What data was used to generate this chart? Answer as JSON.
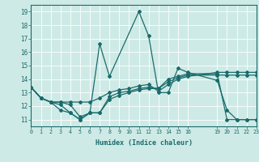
{
  "xlabel": "Humidex (Indice chaleur)",
  "xlim": [
    0,
    23
  ],
  "ylim": [
    10.5,
    19.5
  ],
  "yticks": [
    11,
    12,
    13,
    14,
    15,
    16,
    17,
    18,
    19
  ],
  "xticks": [
    0,
    1,
    2,
    3,
    4,
    5,
    6,
    7,
    8,
    9,
    10,
    11,
    12,
    13,
    14,
    15,
    16,
    19,
    20,
    21,
    22,
    23
  ],
  "bg_color": "#ceeae6",
  "line_color": "#1a6b6b",
  "grid_color": "#b0d8d4",
  "lines": [
    {
      "x": [
        0,
        1,
        2,
        3,
        4,
        5,
        6,
        7,
        8,
        11,
        12,
        13,
        14,
        15,
        16,
        19,
        20,
        21,
        22,
        23
      ],
      "y": [
        13.4,
        12.6,
        12.3,
        11.7,
        11.5,
        11.0,
        11.5,
        16.6,
        14.2,
        19.0,
        17.2,
        13.0,
        13.0,
        14.8,
        14.5,
        13.9,
        11.7,
        11.0,
        11.0,
        11.0
      ]
    },
    {
      "x": [
        0,
        1,
        2,
        3,
        4,
        5,
        6,
        7,
        8,
        9,
        10,
        11,
        12,
        13,
        14,
        15,
        16,
        19,
        20,
        21,
        22,
        23
      ],
      "y": [
        13.4,
        12.6,
        12.3,
        12.3,
        12.3,
        12.3,
        12.3,
        12.6,
        13.0,
        13.2,
        13.3,
        13.5,
        13.6,
        13.1,
        13.6,
        14.0,
        14.2,
        14.5,
        14.5,
        14.5,
        14.5,
        14.5
      ]
    },
    {
      "x": [
        0,
        1,
        2,
        3,
        4,
        5,
        6,
        7,
        8,
        9,
        10,
        11,
        12,
        13,
        14,
        15,
        16,
        19,
        20,
        21,
        22,
        23
      ],
      "y": [
        13.4,
        12.6,
        12.3,
        12.1,
        11.5,
        11.0,
        11.5,
        11.5,
        12.7,
        13.0,
        13.1,
        13.3,
        13.4,
        13.3,
        14.0,
        14.2,
        14.4,
        14.4,
        11.0,
        11.0,
        11.0,
        11.0
      ]
    },
    {
      "x": [
        0,
        1,
        2,
        3,
        4,
        5,
        6,
        7,
        8,
        9,
        10,
        11,
        12,
        13,
        14,
        15,
        16,
        19,
        20,
        21,
        22,
        23
      ],
      "y": [
        13.4,
        12.6,
        12.3,
        12.3,
        12.1,
        11.2,
        11.5,
        11.5,
        12.5,
        12.8,
        13.0,
        13.2,
        13.3,
        13.3,
        13.8,
        14.1,
        14.3,
        14.3,
        14.3,
        14.3,
        14.3,
        14.3
      ]
    }
  ]
}
